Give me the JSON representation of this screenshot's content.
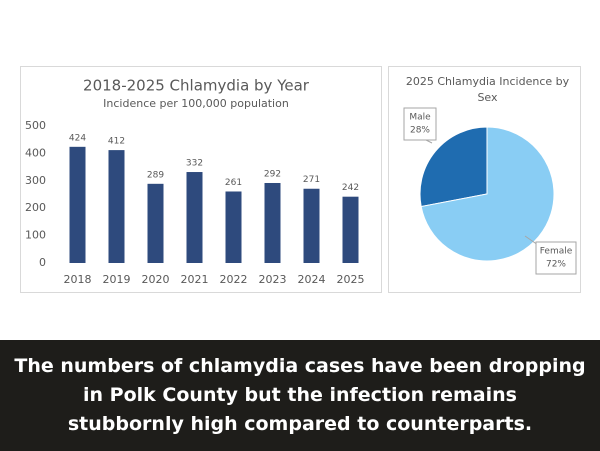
{
  "chart_data": [
    {
      "type": "bar",
      "title": "2018-2025 Chlamydia by Year",
      "subtitle": "Incidence per 100,000 population",
      "categories": [
        "2018",
        "2019",
        "2020",
        "2021",
        "2022",
        "2023",
        "2024",
        "2025"
      ],
      "values": [
        424,
        412,
        289,
        332,
        261,
        292,
        271,
        242
      ],
      "color": "#2e4a7d",
      "ylim": [
        0,
        500
      ],
      "yticks": [
        0,
        100,
        200,
        300,
        400,
        500
      ],
      "grid": false
    },
    {
      "type": "pie",
      "title": "2025 Chlamydia Incidence by Sex",
      "categories": [
        "Male",
        "Female"
      ],
      "values": [
        28,
        72
      ],
      "value_labels": [
        "28%",
        "72%"
      ],
      "colors": [
        "#1f6cb0",
        "#89cdf4"
      ]
    }
  ],
  "caption": [
    "The numbers of chlamydia cases have been dropping",
    "in Polk County but the infection remains",
    "stubbornly high compared to counterparts."
  ]
}
